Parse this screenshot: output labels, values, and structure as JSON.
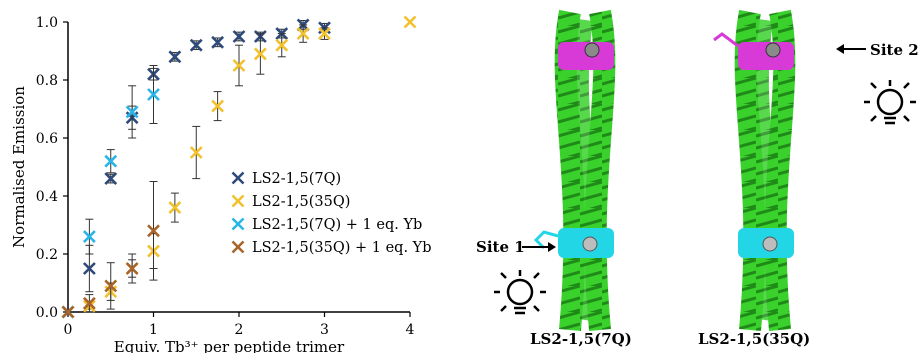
{
  "chart_data": {
    "type": "scatter",
    "xlabel": "Equiv. Tb³⁺ per peptide trimer",
    "ylabel": "Normalised Emission",
    "xlim": [
      0,
      4
    ],
    "ylim": [
      0,
      1.0
    ],
    "x_ticks": [
      "0",
      "1",
      "2",
      "3",
      "4"
    ],
    "y_ticks": [
      "0.0",
      "0.2",
      "0.4",
      "0.6",
      "0.8",
      "1.0"
    ],
    "grid": false,
    "legend_position": "center-right",
    "series": [
      {
        "name": "LS2-1,5(7Q)",
        "color": "#2e4a7a",
        "points": [
          {
            "x": 0,
            "y": 0.0,
            "err": 0.0
          },
          {
            "x": 0.25,
            "y": 0.15,
            "err": 0.08
          },
          {
            "x": 0.5,
            "y": 0.46,
            "err": 0.015
          },
          {
            "x": 0.75,
            "y": 0.67,
            "err": 0.04
          },
          {
            "x": 1.0,
            "y": 0.82,
            "err": 0.02
          },
          {
            "x": 1.25,
            "y": 0.88,
            "err": 0.015
          },
          {
            "x": 1.5,
            "y": 0.92,
            "err": 0.015
          },
          {
            "x": 1.75,
            "y": 0.93,
            "err": 0.015
          },
          {
            "x": 2.0,
            "y": 0.95,
            "err": 0.015
          },
          {
            "x": 2.25,
            "y": 0.95,
            "err": 0.015
          },
          {
            "x": 2.5,
            "y": 0.96,
            "err": 0.015
          },
          {
            "x": 2.75,
            "y": 0.99,
            "err": 0.015
          },
          {
            "x": 3.0,
            "y": 0.98,
            "err": 0.015
          }
        ]
      },
      {
        "name": "LS2-1,5(35Q)",
        "color": "#f2c12e",
        "points": [
          {
            "x": 0,
            "y": 0.0,
            "err": 0.0
          },
          {
            "x": 0.25,
            "y": 0.02,
            "err": 0.01
          },
          {
            "x": 0.5,
            "y": 0.07,
            "err": 0.03
          },
          {
            "x": 0.75,
            "y": 0.15,
            "err": 0.03
          },
          {
            "x": 1.0,
            "y": 0.21,
            "err": 0.06
          },
          {
            "x": 1.25,
            "y": 0.36,
            "err": 0.05
          },
          {
            "x": 1.5,
            "y": 0.55,
            "err": 0.09
          },
          {
            "x": 1.75,
            "y": 0.71,
            "err": 0.05
          },
          {
            "x": 2.0,
            "y": 0.85,
            "err": 0.07
          },
          {
            "x": 2.25,
            "y": 0.89,
            "err": 0.07
          },
          {
            "x": 2.5,
            "y": 0.92,
            "err": 0.04
          },
          {
            "x": 2.75,
            "y": 0.96,
            "err": 0.03
          },
          {
            "x": 3.0,
            "y": 0.96,
            "err": 0.02
          },
          {
            "x": 4.0,
            "y": 1.0,
            "err": 0.0
          }
        ]
      },
      {
        "name": "LS2-1,5(7Q) + 1 eq. Yb",
        "color": "#29b5e8",
        "points": [
          {
            "x": 0,
            "y": 0.0,
            "err": 0.0
          },
          {
            "x": 0.25,
            "y": 0.26,
            "err": 0.06
          },
          {
            "x": 0.5,
            "y": 0.52,
            "err": 0.04
          },
          {
            "x": 0.75,
            "y": 0.69,
            "err": 0.09
          },
          {
            "x": 1.0,
            "y": 0.75,
            "err": 0.1
          }
        ]
      },
      {
        "name": "LS2-1,5(35Q) + 1 eq. Yb",
        "color": "#a8642a",
        "points": [
          {
            "x": 0,
            "y": 0.0,
            "err": 0.0
          },
          {
            "x": 0.25,
            "y": 0.03,
            "err": 0.03
          },
          {
            "x": 0.5,
            "y": 0.09,
            "err": 0.08
          },
          {
            "x": 0.75,
            "y": 0.15,
            "err": 0.05
          },
          {
            "x": 1.0,
            "y": 0.28,
            "err": 0.17
          }
        ]
      }
    ]
  },
  "figure": {
    "site1_label": "Site 1",
    "site2_label": "Site 2",
    "left_structure_label": "LS2-1,5(7Q)",
    "right_structure_label": "LS2-1,5(35Q)",
    "icon_names": [
      "lightbulb-icon",
      "helix-bundle-image"
    ],
    "colors": {
      "helix": "#3ad12c",
      "site1": "#22d6e6",
      "site2": "#d83ad8",
      "metal": "#8a8a8a"
    }
  }
}
